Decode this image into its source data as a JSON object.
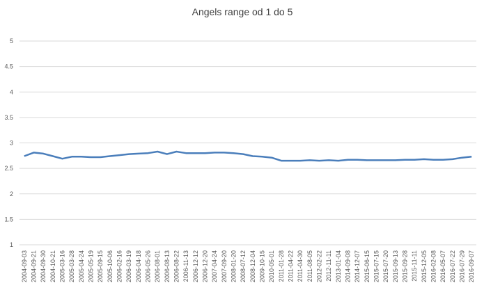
{
  "chart_data": {
    "type": "line",
    "title": "Angels range od 1 do 5",
    "categories": [
      "2004-09-03",
      "2004-09-21",
      "2004-09-30",
      "2004-10-21",
      "2005-03-16",
      "2005-03-28",
      "2005-04-24",
      "2005-05-19",
      "2005-09-15",
      "2005-10-06",
      "2006-02-16",
      "2006-03-19",
      "2006-04-18",
      "2006-05-26",
      "2006-08-01",
      "2006-08-13",
      "2006-08-22",
      "2006-11-13",
      "2006-12-12",
      "2006-12-20",
      "2007-04-24",
      "2007-09-20",
      "2008-01-20",
      "2008-07-12",
      "2008-12-04",
      "2009-10-15",
      "2010-05-01",
      "2011-01-28",
      "2011-04-22",
      "2011-04-30",
      "2011-08-05",
      "2012-02-22",
      "2012-11-11",
      "2013-01-04",
      "2014-09-08",
      "2014-12-07",
      "2015-06-15",
      "2015-07-15",
      "2015-07-20",
      "2015-09-13",
      "2015-09-28",
      "2015-11-11",
      "2015-12-05",
      "2016-02-08",
      "2016-05-07",
      "2016-07-22",
      "2016-07-29",
      "2016-09-07"
    ],
    "series": [
      {
        "color": "#4a7ebb",
        "values": [
          2.74,
          2.81,
          2.79,
          2.74,
          2.69,
          2.73,
          2.73,
          2.72,
          2.72,
          2.74,
          2.76,
          2.78,
          2.79,
          2.8,
          2.83,
          2.78,
          2.83,
          2.8,
          2.8,
          2.8,
          2.81,
          2.81,
          2.8,
          2.78,
          2.74,
          2.73,
          2.71,
          2.65,
          2.65,
          2.65,
          2.66,
          2.65,
          2.66,
          2.65,
          2.67,
          2.67,
          2.66,
          2.66,
          2.66,
          2.66,
          2.67,
          2.67,
          2.68,
          2.67,
          2.67,
          2.68,
          2.71,
          2.73
        ]
      }
    ],
    "ylim": [
      1,
      5
    ],
    "yticks": [
      1,
      1.5,
      2,
      2.5,
      3,
      3.5,
      4,
      4.5,
      5
    ],
    "grid": true
  }
}
